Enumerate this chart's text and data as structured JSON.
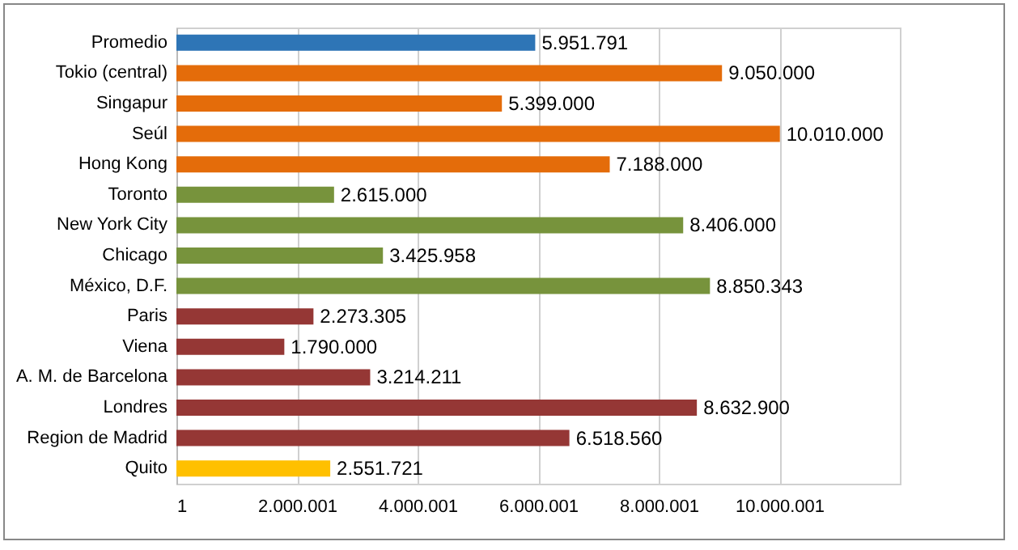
{
  "chart_data": {
    "type": "bar",
    "orientation": "horizontal",
    "categories": [
      "Promedio",
      "Tokio (central)",
      "Singapur",
      "Seúl",
      "Hong Kong",
      "Toronto",
      "New York City",
      "Chicago",
      "México, D.F.",
      "Paris",
      "Viena",
      "A. M. de Barcelona",
      "Londres",
      "Region de Madrid",
      "Quito"
    ],
    "values": [
      5951791,
      9050000,
      5399000,
      10010000,
      7188000,
      2615000,
      8406000,
      3425958,
      8850343,
      2273305,
      1790000,
      3214211,
      8632900,
      6518560,
      2551721
    ],
    "colors": [
      "#2e75b6",
      "#e46c0a",
      "#e46c0a",
      "#e46c0a",
      "#e46c0a",
      "#77933c",
      "#77933c",
      "#77933c",
      "#77933c",
      "#953735",
      "#953735",
      "#953735",
      "#953735",
      "#953735",
      "#ffc000"
    ],
    "value_labels": [
      "5.951.791",
      "9.050.000",
      "5.399.000",
      "10.010.000",
      "7.188.000",
      "2.615.000",
      "8.406.000",
      "3.425.958",
      "8.850.343",
      "2.273.305",
      "1.790.000",
      "3.214.211",
      "8.632.900",
      "6.518.560",
      "2.551.721"
    ],
    "xlim": [
      1,
      12000001
    ],
    "xticks": [
      1,
      {
        "value": 2000001,
        "label": "2.000.001"
      },
      {
        "value": 4000001,
        "label": "4.000.001"
      },
      {
        "value": 6000001,
        "label": "6.000.001"
      },
      {
        "value": 8000001,
        "label": "8.000.001"
      },
      {
        "value": 10000001,
        "label": "10.000.001"
      }
    ],
    "grid": "x"
  }
}
